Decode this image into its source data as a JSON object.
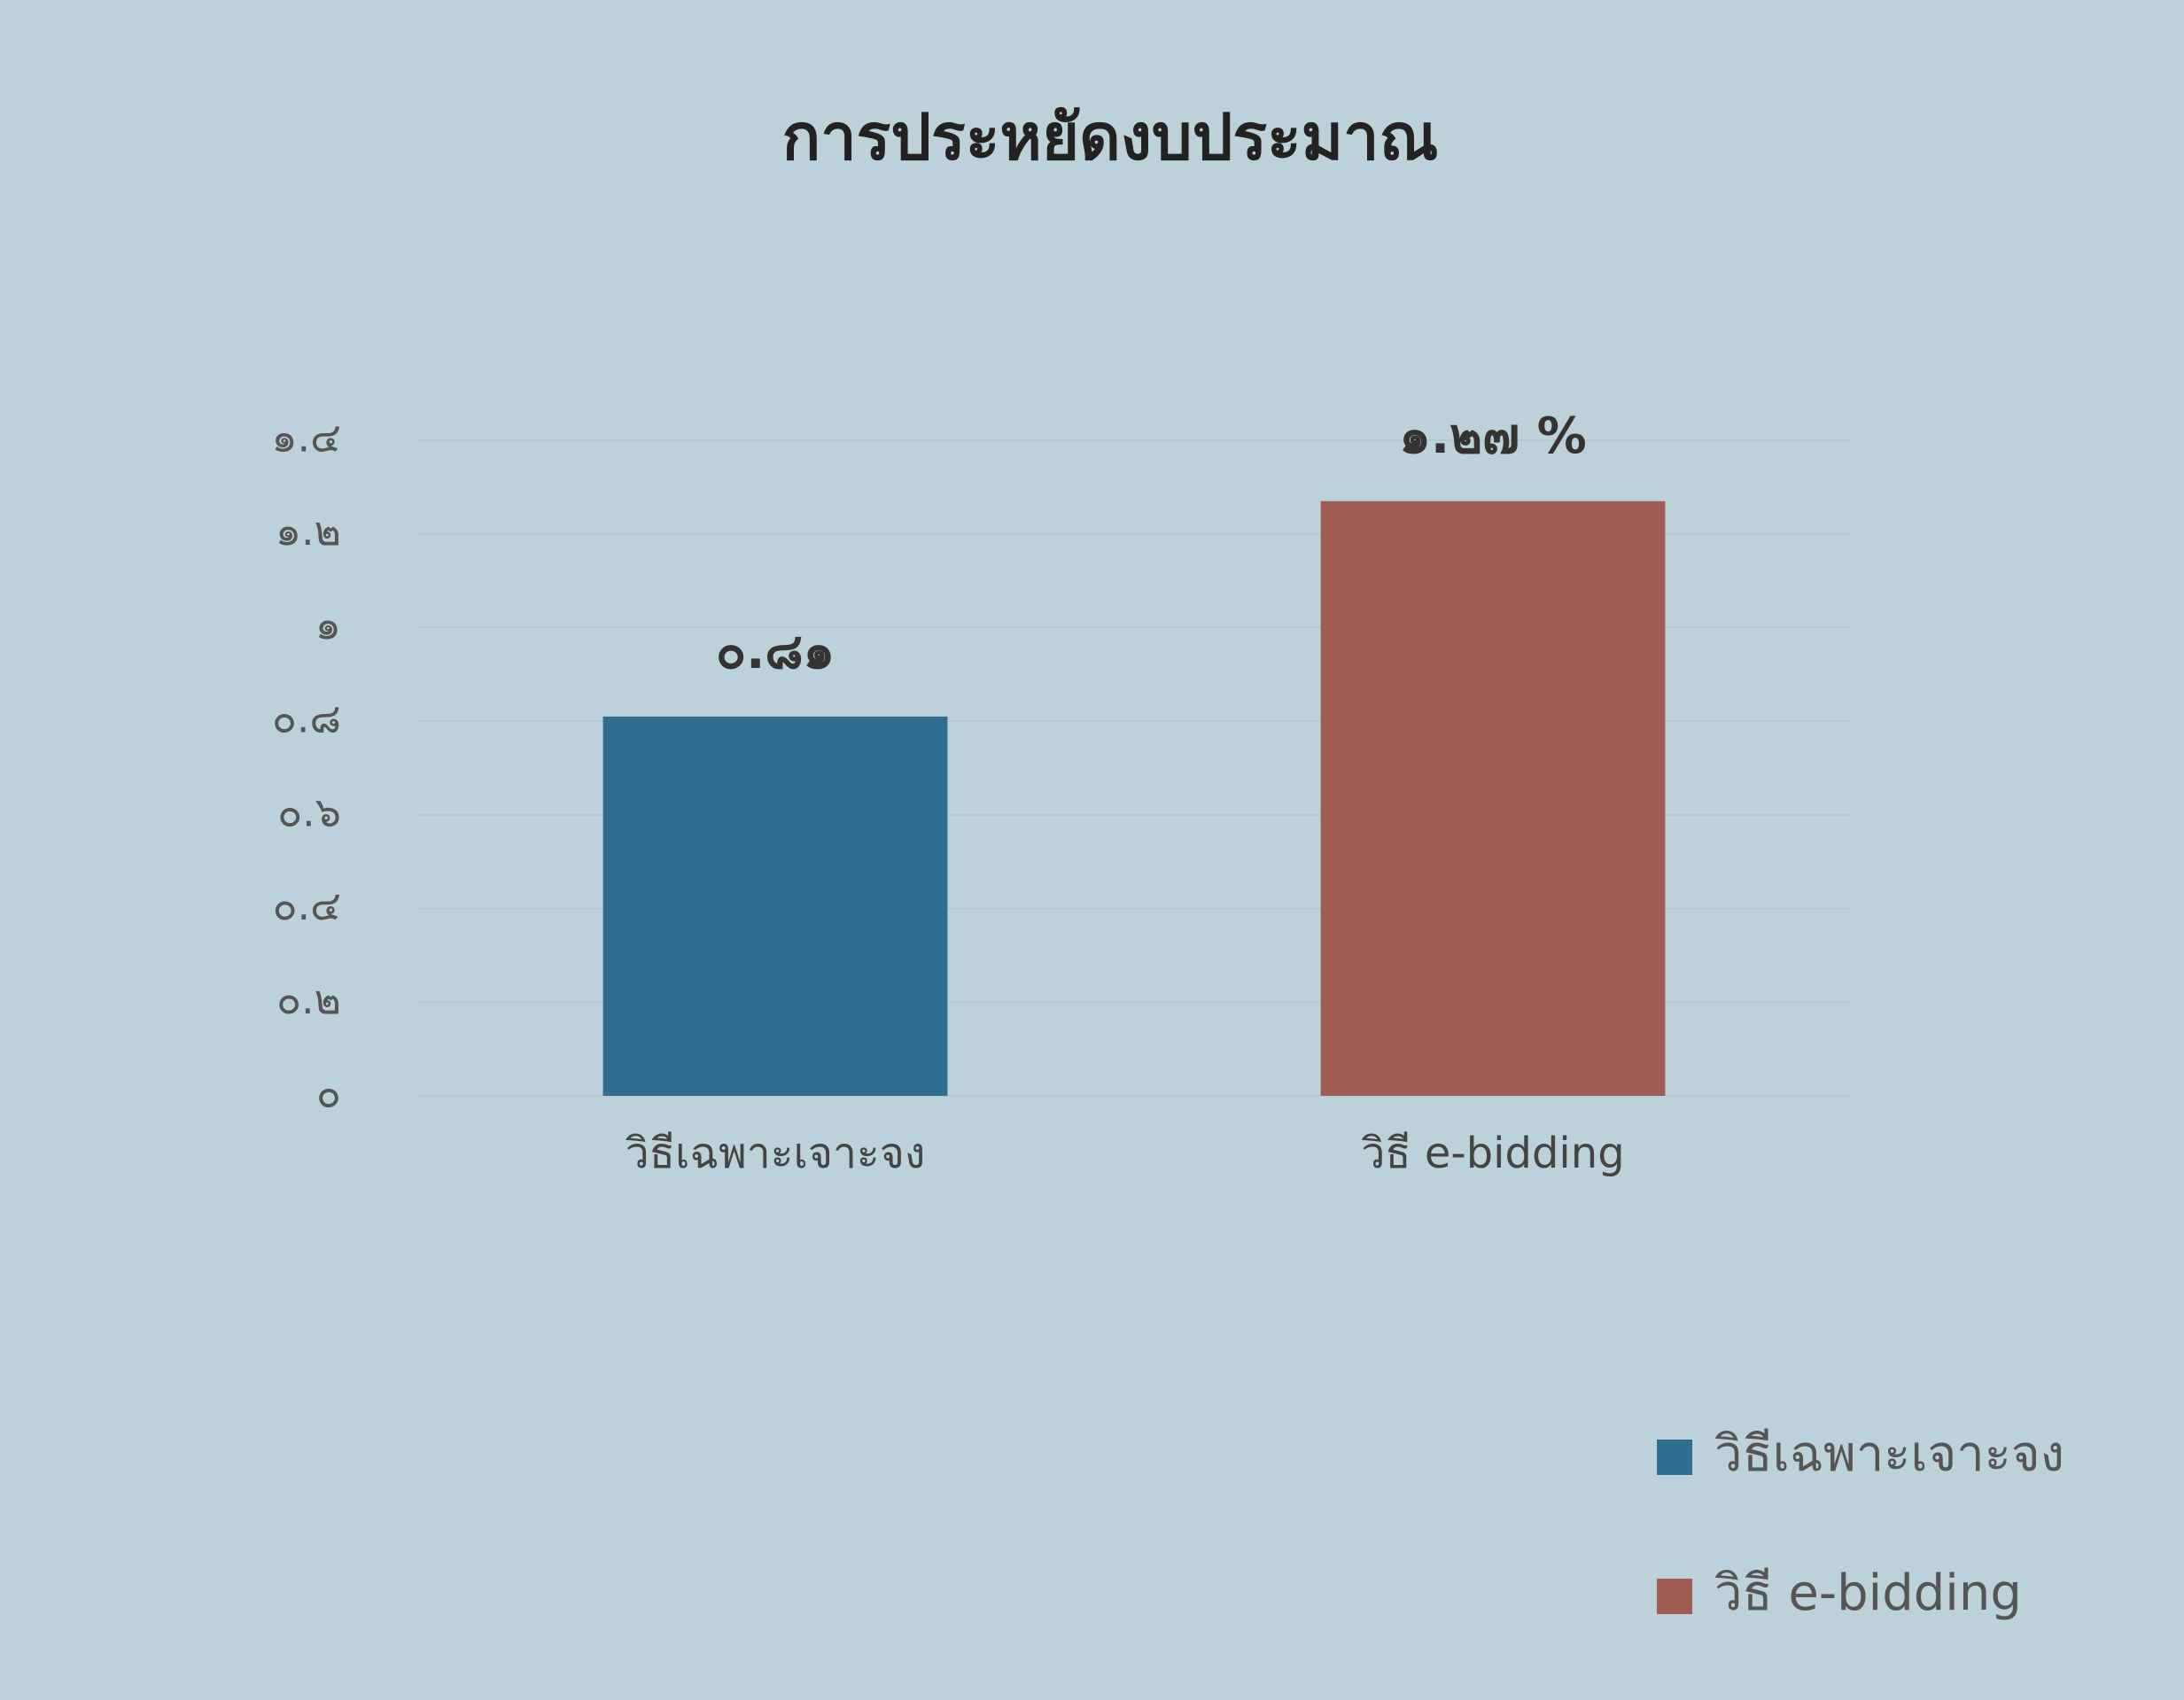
{
  "chart_data": {
    "type": "bar",
    "title": "การประหยัดงบประมาณ",
    "categories": [
      "วิธีเฉพาะเจาะจง",
      "วิธี e-bidding"
    ],
    "values": [
      0.81,
      1.27
    ],
    "value_labels": [
      "๐.๘๑",
      "๑.๒๗ %"
    ],
    "colors": [
      "#2f6d91",
      "#a05c52"
    ],
    "ylim": [
      0,
      1.4
    ],
    "yticks": [
      {
        "value": 0,
        "label": "๐"
      },
      {
        "value": 0.2,
        "label": "๐.๒"
      },
      {
        "value": 0.4,
        "label": "๐.๔"
      },
      {
        "value": 0.6,
        "label": "๐.๖"
      },
      {
        "value": 0.8,
        "label": "๐.๘"
      },
      {
        "value": 1,
        "label": "๑"
      },
      {
        "value": 1.2,
        "label": "๑.๒"
      },
      {
        "value": 1.4,
        "label": "๑.๔"
      }
    ],
    "grid": true,
    "legend": "bottom-right"
  }
}
